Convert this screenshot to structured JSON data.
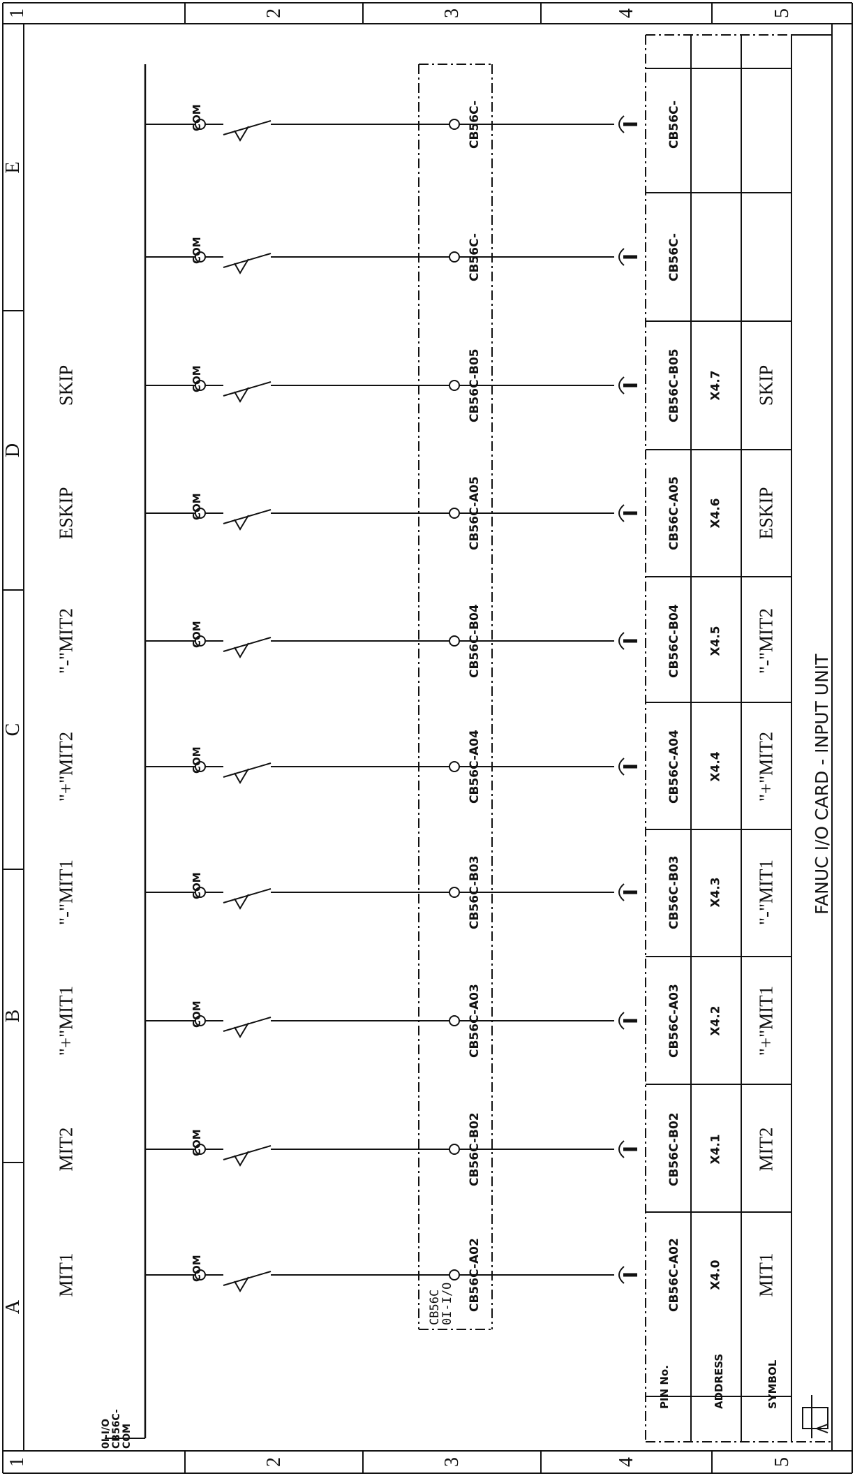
{
  "drawing": {
    "title": "FANUC I/O CARD - INPUT UNIT",
    "col_zones": [
      "1",
      "2",
      "3",
      "4",
      "5"
    ],
    "row_zones": [
      "A",
      "B",
      "C",
      "D",
      "E"
    ]
  },
  "common_bus": {
    "lines": [
      "0I-I/O",
      "CB56C-",
      "COM"
    ]
  },
  "connector_box": {
    "lines": [
      "CB56C",
      "0I-I/O"
    ]
  },
  "channel_labels": [
    "MIT1",
    "MIT2",
    "\"+\"MIT1",
    "\"-\"MIT1",
    "\"+\"MIT2",
    "\"-\"MIT2",
    "ESKIP",
    "SKIP"
  ],
  "row_headers": {
    "pin": "PIN No.",
    "address": "ADDRESS",
    "symbol": "SYMBOL"
  },
  "channels": [
    {
      "com": "COM",
      "pin": "CB56C-A02",
      "address": "X4.0",
      "symbol": "MIT1"
    },
    {
      "com": "COM",
      "pin": "CB56C-B02",
      "address": "X4.1",
      "symbol": "MIT2"
    },
    {
      "com": "COM",
      "pin": "CB56C-A03",
      "address": "X4.2",
      "symbol": "\"+\"MIT1"
    },
    {
      "com": "COM",
      "pin": "CB56C-B03",
      "address": "X4.3",
      "symbol": "\"-\"MIT1"
    },
    {
      "com": "COM",
      "pin": "CB56C-A04",
      "address": "X4.4",
      "symbol": "\"+\"MIT2"
    },
    {
      "com": "COM",
      "pin": "CB56C-B04",
      "address": "X4.5",
      "symbol": "\"-\"MIT2"
    },
    {
      "com": "COM",
      "pin": "CB56C-A05",
      "address": "X4.6",
      "symbol": "ESKIP"
    },
    {
      "com": "COM",
      "pin": "CB56C-B05",
      "address": "X4.7",
      "symbol": "SKIP"
    },
    {
      "com": "COM",
      "pin": "CB56C-",
      "address": "",
      "symbol": ""
    },
    {
      "com": "COM",
      "pin": "CB56C-",
      "address": "",
      "symbol": ""
    }
  ]
}
